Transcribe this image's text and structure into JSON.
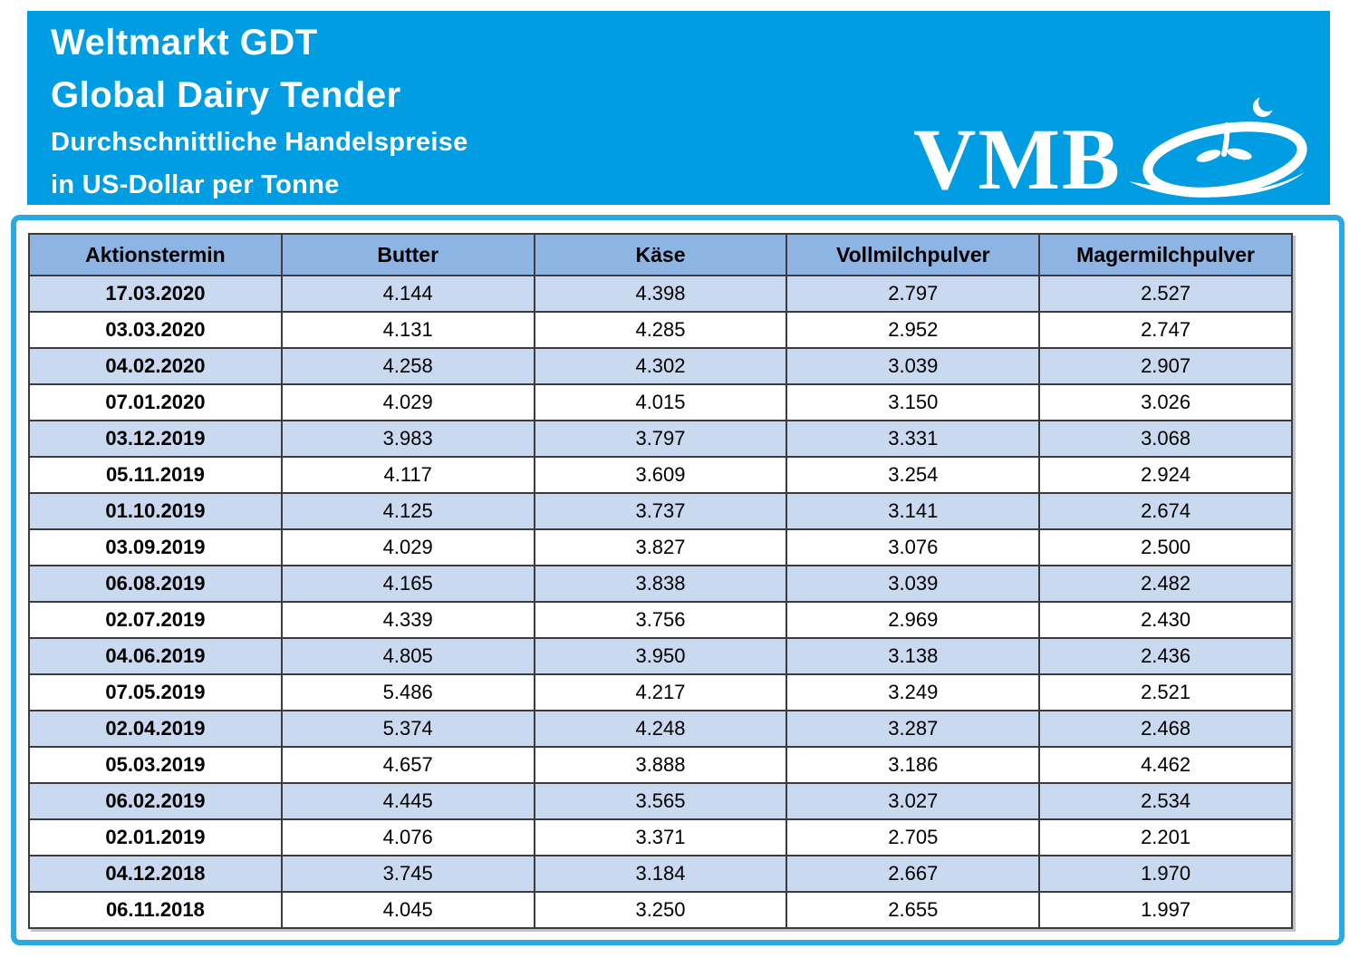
{
  "banner": {
    "title_line1": "Weltmarkt GDT",
    "title_line2": "Global Dairy Tender",
    "subtitle_line1": "Durchschnittliche Handelspreise",
    "subtitle_line2": "in US-Dollar per Tonne",
    "logo_text": "VMB",
    "background_color": "#009DE2",
    "text_color": "#FFFFFF"
  },
  "table": {
    "columns": [
      "Aktionstermin",
      "Butter",
      "Käse",
      "Vollmilchpulver",
      "Magermilchpulver"
    ],
    "rows": [
      {
        "date": "17.03.2020",
        "values": [
          "4.144",
          "4.398",
          "2.797",
          "2.527"
        ]
      },
      {
        "date": "03.03.2020",
        "values": [
          "4.131",
          "4.285",
          "2.952",
          "2.747"
        ]
      },
      {
        "date": "04.02.2020",
        "values": [
          "4.258",
          "4.302",
          "3.039",
          "2.907"
        ]
      },
      {
        "date": "07.01.2020",
        "values": [
          "4.029",
          "4.015",
          "3.150",
          "3.026"
        ]
      },
      {
        "date": "03.12.2019",
        "values": [
          "3.983",
          "3.797",
          "3.331",
          "3.068"
        ]
      },
      {
        "date": "05.11.2019",
        "values": [
          "4.117",
          "3.609",
          "3.254",
          "2.924"
        ]
      },
      {
        "date": "01.10.2019",
        "values": [
          "4.125",
          "3.737",
          "3.141",
          "2.674"
        ]
      },
      {
        "date": "03.09.2019",
        "values": [
          "4.029",
          "3.827",
          "3.076",
          "2.500"
        ]
      },
      {
        "date": "06.08.2019",
        "values": [
          "4.165",
          "3.838",
          "3.039",
          "2.482"
        ]
      },
      {
        "date": "02.07.2019",
        "values": [
          "4.339",
          "3.756",
          "2.969",
          "2.430"
        ]
      },
      {
        "date": "04.06.2019",
        "values": [
          "4.805",
          "3.950",
          "3.138",
          "2.436"
        ]
      },
      {
        "date": "07.05.2019",
        "values": [
          "5.486",
          "4.217",
          "3.249",
          "2.521"
        ]
      },
      {
        "date": "02.04.2019",
        "values": [
          "5.374",
          "4.248",
          "3.287",
          "2.468"
        ]
      },
      {
        "date": "05.03.2019",
        "values": [
          "4.657",
          "3.888",
          "3.186",
          "4.462"
        ]
      },
      {
        "date": "06.02.2019",
        "values": [
          "4.445",
          "3.565",
          "3.027",
          "2.534"
        ]
      },
      {
        "date": "02.01.2019",
        "values": [
          "4.076",
          "3.371",
          "2.705",
          "2.201"
        ]
      },
      {
        "date": "04.12.2018",
        "values": [
          "3.745",
          "3.184",
          "2.667",
          "1.970"
        ]
      },
      {
        "date": "06.11.2018",
        "values": [
          "4.045",
          "3.250",
          "2.655",
          "1.997"
        ]
      }
    ],
    "colors": {
      "header_bg": "#8DB4E2",
      "stripe_bg": "#C9D9F0",
      "panel_border": "#29ABE2",
      "grid": "#3C3C3C"
    }
  }
}
